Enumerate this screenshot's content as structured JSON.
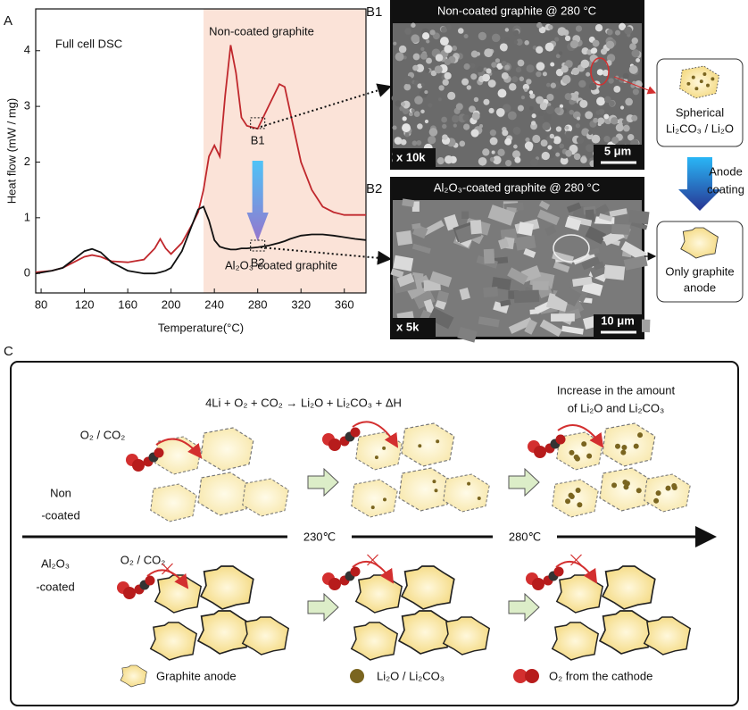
{
  "figure_labels": {
    "a": "A",
    "c": "C"
  },
  "chart_data": {
    "type": "line",
    "title": "Full cell DSC",
    "x_label": "Temperature(°C)",
    "y_label": "Heat flow (mW / mg)",
    "x": [
      75,
      90,
      100,
      110,
      120,
      127,
      135,
      145,
      160,
      175,
      185,
      190,
      195,
      200,
      210,
      220,
      225,
      230,
      235,
      240,
      245,
      250,
      255,
      260,
      265,
      270,
      280,
      290,
      300,
      305,
      310,
      320,
      330,
      340,
      350,
      360,
      370,
      380
    ],
    "series": [
      {
        "name": "Non-coated graphite",
        "color": "#c0282d",
        "values": [
          0.02,
          0.05,
          0.1,
          0.2,
          0.3,
          0.33,
          0.3,
          0.22,
          0.2,
          0.25,
          0.45,
          0.62,
          0.45,
          0.35,
          0.55,
          0.9,
          1.1,
          1.5,
          2.1,
          2.3,
          2.1,
          3.2,
          4.1,
          3.6,
          2.8,
          2.65,
          2.6,
          3.0,
          3.4,
          3.35,
          2.9,
          2.0,
          1.5,
          1.2,
          1.1,
          1.05,
          1.05,
          1.05
        ]
      },
      {
        "name": "Al₂O₃-coated graphite",
        "color": "#111111",
        "values": [
          0.0,
          0.05,
          0.1,
          0.25,
          0.4,
          0.44,
          0.38,
          0.2,
          0.05,
          0.0,
          0.0,
          0.02,
          0.05,
          0.1,
          0.4,
          0.9,
          1.15,
          1.2,
          0.95,
          0.6,
          0.48,
          0.45,
          0.43,
          0.43,
          0.45,
          0.45,
          0.47,
          0.5,
          0.55,
          0.58,
          0.62,
          0.68,
          0.7,
          0.7,
          0.68,
          0.65,
          0.62,
          0.6
        ]
      }
    ],
    "xlim": [
      75,
      380
    ],
    "ylim": [
      -0.35,
      4.75
    ],
    "xticks": [
      80,
      120,
      160,
      200,
      240,
      280,
      320,
      360
    ],
    "yticks": [
      0,
      1,
      2,
      3,
      4
    ],
    "shaded_xrange": [
      230,
      380
    ],
    "shade_color": "#fbe3d8",
    "markers": [
      {
        "label": "B1",
        "x": 280,
        "y": 2.7
      },
      {
        "label": "B2",
        "x": 280,
        "y": 0.5
      }
    ]
  },
  "sem_panels": [
    {
      "label": "B1",
      "title": "Non-coated graphite @ 280 °C",
      "magnification": "x 10k",
      "scale_bar": "5 μm"
    },
    {
      "label": "B2",
      "title": "Al₂O₃-coated graphite @ 280 °C",
      "magnification": "x 5k",
      "scale_bar": "10 μm"
    }
  ],
  "side_notes": {
    "spherical": [
      "Spherical",
      "Li₂CO₃ / Li₂O"
    ],
    "anode_coating": [
      "Anode",
      "coating"
    ],
    "only_graphite": [
      "Only graphite",
      "anode"
    ]
  },
  "scheme": {
    "equation": "4Li + O₂ + CO₂ → Li₂O + Li₂CO₃ + ΔH",
    "increase": [
      "Increase in the amount",
      "of Li₂O and Li₂CO₃"
    ],
    "gas_top": "O₂ / CO₂",
    "gas_bottom": "O₂ / CO₂",
    "row_top": [
      "Non",
      "-coated"
    ],
    "row_bottom": [
      "Al₂O₃",
      "-coated"
    ],
    "temperatures": [
      "230℃",
      "280℃"
    ],
    "legend": [
      "Graphite anode",
      "Li₂O / Li₂CO₃",
      "O₂ from the cathode"
    ]
  }
}
